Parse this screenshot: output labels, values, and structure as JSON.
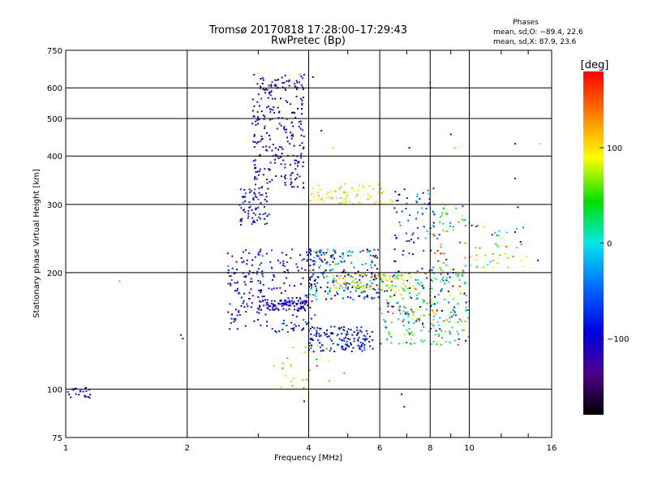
{
  "title_line1": "Tromsø 20170818 17:28:00–17:29:43",
  "title_line2": "RwPretec (Bp)",
  "phases": {
    "heading": "Phases",
    "o_line": "mean, sd,O: −89.4, 22.6",
    "x_line": "mean, sd,X:  87.9, 23.6"
  },
  "colorbar": {
    "label": "[deg]",
    "min": -180,
    "max": 180,
    "ticks": [
      100,
      0,
      -100
    ],
    "tick_labels": [
      "100",
      "0",
      "−100"
    ]
  },
  "chart_data": {
    "type": "scatter",
    "title": "Tromsø 20170818 17:28:00–17:29:43",
    "subtitle": "RwPretec (Bp)",
    "xlabel": "Frequency [MHz]",
    "ylabel": "Stationary phase Virtual Height [km]",
    "xscale": "log",
    "yscale": "log",
    "xlim": [
      1,
      16
    ],
    "ylim": [
      75,
      750
    ],
    "xticks": [
      1,
      2,
      4,
      6,
      8,
      10,
      16
    ],
    "xtick_labels": [
      "1",
      "2",
      "4",
      "6",
      "8",
      "10",
      "16"
    ],
    "yticks": [
      75,
      100,
      200,
      300,
      400,
      500,
      600,
      750
    ],
    "ytick_labels": [
      "75",
      "100",
      "200",
      "300",
      "400",
      "500",
      "600",
      "750"
    ],
    "grid": true,
    "color_encoding": "phase [deg]",
    "clusters": [
      {
        "x_range": [
          2.9,
          3.9
        ],
        "y_range": [
          330,
          650
        ],
        "phase_mean": -110,
        "phase_sd": 20,
        "count": 260
      },
      {
        "x_range": [
          2.7,
          3.2
        ],
        "y_range": [
          265,
          330
        ],
        "phase_mean": -95,
        "phase_sd": 25,
        "count": 70
      },
      {
        "x_range": [
          2.5,
          4.2
        ],
        "y_range": [
          140,
          230
        ],
        "phase_mean": -95,
        "phase_sd": 25,
        "count": 240
      },
      {
        "x_range": [
          3.0,
          4.0
        ],
        "y_range": [
          160,
          170
        ],
        "phase_mean": -110,
        "phase_sd": 15,
        "count": 90
      },
      {
        "x_range": [
          4.0,
          5.8
        ],
        "y_range": [
          125,
          145
        ],
        "phase_mean": -90,
        "phase_sd": 20,
        "count": 140
      },
      {
        "x_range": [
          4.0,
          6.0
        ],
        "y_range": [
          170,
          230
        ],
        "phase_mean": -70,
        "phase_sd": 60,
        "count": 220
      },
      {
        "x_range": [
          4.6,
          7.2
        ],
        "y_range": [
          180,
          200
        ],
        "phase_mean": 100,
        "phase_sd": 20,
        "count": 90
      },
      {
        "x_range": [
          4.0,
          6.5
        ],
        "y_range": [
          300,
          340
        ],
        "phase_mean": 95,
        "phase_sd": 20,
        "count": 70
      },
      {
        "x_range": [
          6.0,
          8.2
        ],
        "y_range": [
          130,
          200
        ],
        "phase_mean": 30,
        "phase_sd": 80,
        "count": 170
      },
      {
        "x_range": [
          8.0,
          10.0
        ],
        "y_range": [
          130,
          200
        ],
        "phase_mean": 20,
        "phase_sd": 80,
        "count": 110
      },
      {
        "x_range": [
          6.5,
          8.2
        ],
        "y_range": [
          200,
          330
        ],
        "phase_mean": -80,
        "phase_sd": 40,
        "count": 70
      },
      {
        "x_range": [
          8.1,
          9.8
        ],
        "y_range": [
          190,
          300
        ],
        "phase_mean": 40,
        "phase_sd": 80,
        "count": 60
      },
      {
        "x_range": [
          10.0,
          14.0
        ],
        "y_range": [
          205,
          270
        ],
        "phase_mean": 60,
        "phase_sd": 70,
        "count": 45
      },
      {
        "x_range": [
          1.0,
          1.15
        ],
        "y_range": [
          95,
          101
        ],
        "phase_mean": -105,
        "phase_sd": 15,
        "count": 22
      },
      {
        "x_range": [
          3.2,
          4.5
        ],
        "y_range": [
          100,
          130
        ],
        "phase_mean": 110,
        "phase_sd": 30,
        "count": 25
      }
    ],
    "points": [
      {
        "x": 1.36,
        "y": 190,
        "phase": 130
      },
      {
        "x": 1.93,
        "y": 138,
        "phase": -110
      },
      {
        "x": 1.95,
        "y": 135,
        "phase": -110
      },
      {
        "x": 2.55,
        "y": 143,
        "phase": -115
      },
      {
        "x": 4.5,
        "y": 105,
        "phase": 120
      },
      {
        "x": 3.9,
        "y": 93,
        "phase": -110
      },
      {
        "x": 6.8,
        "y": 97,
        "phase": -100
      },
      {
        "x": 6.9,
        "y": 90,
        "phase": -110
      },
      {
        "x": 7.1,
        "y": 420,
        "phase": -100
      },
      {
        "x": 8.0,
        "y": 620,
        "phase": 40
      },
      {
        "x": 8.05,
        "y": 600,
        "phase": 30
      },
      {
        "x": 9.0,
        "y": 455,
        "phase": -110
      },
      {
        "x": 9.2,
        "y": 420,
        "phase": 120
      },
      {
        "x": 13.0,
        "y": 430,
        "phase": -150
      },
      {
        "x": 15.0,
        "y": 430,
        "phase": 110
      },
      {
        "x": 13.0,
        "y": 350,
        "phase": -140
      },
      {
        "x": 13.2,
        "y": 295,
        "phase": -100
      },
      {
        "x": 13.4,
        "y": 240,
        "phase": -110
      },
      {
        "x": 14.8,
        "y": 215,
        "phase": -100
      },
      {
        "x": 4.9,
        "y": 110,
        "phase": 130
      },
      {
        "x": 3.8,
        "y": 650,
        "phase": 130
      },
      {
        "x": 4.1,
        "y": 640,
        "phase": -110
      },
      {
        "x": 4.3,
        "y": 465,
        "phase": -90
      },
      {
        "x": 4.6,
        "y": 420,
        "phase": 110
      }
    ]
  }
}
